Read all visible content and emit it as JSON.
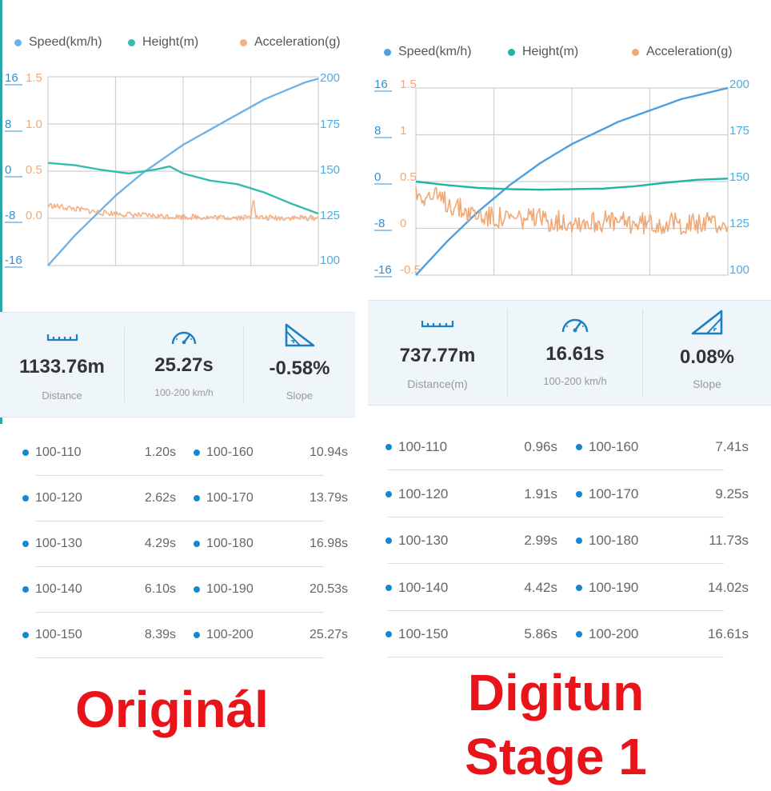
{
  "colors": {
    "speed": "#5aa7e0",
    "height": "#2bbcaa",
    "acceleration": "#f2ab7a",
    "caption": "#e8141a",
    "bullet": "#1787d4"
  },
  "panels": [
    {
      "legend": [
        {
          "label": "Speed(km/h)",
          "color": "#6fb2e8"
        },
        {
          "label": "Height(m)",
          "color": "#34bcae"
        },
        {
          "label": "Acceleration(g)",
          "color": "#f4b184"
        }
      ],
      "chart_data": {
        "type": "line",
        "title": "",
        "x_range": [
          0,
          1
        ],
        "axes": {
          "left_outer_ticks": [
            "16",
            "8",
            "0",
            "-8",
            "-16"
          ],
          "left_inner_ticks": [
            "1.5",
            "1.0",
            "0.5",
            "0.0"
          ],
          "right_ticks": [
            "200",
            "175",
            "150",
            "125",
            "100"
          ],
          "speed_range": [
            100,
            200
          ],
          "height_range": [
            -16,
            16
          ],
          "acceleration_range": [
            -0.5,
            1.5
          ]
        },
        "grid": true,
        "legend_position": "top",
        "series": [
          {
            "name": "Speed(km/h)",
            "axis": "right",
            "values": [
              [
                0,
                100
              ],
              [
                0.05,
                108
              ],
              [
                0.1,
                116
              ],
              [
                0.15,
                123
              ],
              [
                0.2,
                130
              ],
              [
                0.25,
                137
              ],
              [
                0.3,
                143
              ],
              [
                0.35,
                149
              ],
              [
                0.4,
                154
              ],
              [
                0.45,
                159
              ],
              [
                0.5,
                164
              ],
              [
                0.55,
                168
              ],
              [
                0.6,
                172
              ],
              [
                0.65,
                176
              ],
              [
                0.7,
                180
              ],
              [
                0.75,
                184
              ],
              [
                0.8,
                188
              ],
              [
                0.85,
                191
              ],
              [
                0.9,
                194
              ],
              [
                0.95,
                197
              ],
              [
                1,
                199
              ]
            ]
          },
          {
            "name": "Height(m)",
            "axis": "left_outer",
            "values": [
              [
                0,
                1.4
              ],
              [
                0.1,
                1.0
              ],
              [
                0.2,
                0.2
              ],
              [
                0.3,
                -0.4
              ],
              [
                0.4,
                0.3
              ],
              [
                0.45,
                0.8
              ],
              [
                0.5,
                -0.4
              ],
              [
                0.6,
                -1.6
              ],
              [
                0.7,
                -2.2
              ],
              [
                0.8,
                -3.6
              ],
              [
                0.9,
                -5.5
              ],
              [
                1,
                -7.2
              ]
            ]
          },
          {
            "name": "Acceleration(g)",
            "axis": "left_inner",
            "values": [
              [
                0,
                0.14
              ],
              [
                0.05,
                0.12
              ],
              [
                0.1,
                0.1
              ],
              [
                0.15,
                0.08
              ],
              [
                0.2,
                0.06
              ],
              [
                0.25,
                0.05
              ],
              [
                0.3,
                0.04
              ],
              [
                0.35,
                0.03
              ],
              [
                0.4,
                0.025
              ],
              [
                0.45,
                0.02
              ],
              [
                0.5,
                0.015
              ],
              [
                0.55,
                0.015
              ],
              [
                0.6,
                0.01
              ],
              [
                0.65,
                0.01
              ],
              [
                0.7,
                0.01
              ],
              [
                0.75,
                0.01
              ],
              [
                0.76,
                0.25
              ],
              [
                0.77,
                0.01
              ],
              [
                0.8,
                0.005
              ],
              [
                0.85,
                0.005
              ],
              [
                0.9,
                0.005
              ],
              [
                1,
                0.005
              ]
            ],
            "noise": 0.03
          }
        ]
      },
      "stats": [
        {
          "icon": "ruler-icon",
          "value": "1133.76m",
          "label": "Distance"
        },
        {
          "icon": "speedometer-icon",
          "value": "25.27s",
          "label": "100-200 km/h"
        },
        {
          "icon": "slope-icon",
          "value": "-0.58%",
          "label": "Slope"
        }
      ],
      "splits": [
        {
          "range": "100-110",
          "time": "1.20s",
          "range2": "100-160",
          "time2": "10.94s"
        },
        {
          "range": "100-120",
          "time": "2.62s",
          "range2": "100-170",
          "time2": "13.79s"
        },
        {
          "range": "100-130",
          "time": "4.29s",
          "range2": "100-180",
          "time2": "16.98s"
        },
        {
          "range": "100-140",
          "time": "6.10s",
          "range2": "100-190",
          "time2": "20.53s"
        },
        {
          "range": "100-150",
          "time": "8.39s",
          "range2": "100-200",
          "time2": "25.27s"
        }
      ],
      "caption": [
        "Originál"
      ]
    },
    {
      "legend": [
        {
          "label": "Speed(km/h)",
          "color": "#4c9fe0"
        },
        {
          "label": "Height(m)",
          "color": "#1fb5a5"
        },
        {
          "label": "Acceleration(g)",
          "color": "#f0a877"
        }
      ],
      "chart_data": {
        "type": "line",
        "title": "",
        "x_range": [
          0,
          1
        ],
        "axes": {
          "left_outer_ticks": [
            "16",
            "8",
            "0",
            "-8",
            "-16"
          ],
          "left_inner_ticks": [
            "1.5",
            "1",
            "0.5",
            "0",
            "-0.5"
          ],
          "right_ticks": [
            "200",
            "175",
            "150",
            "125",
            "100"
          ],
          "speed_range": [
            100,
            200
          ],
          "height_range": [
            -16,
            16
          ],
          "acceleration_range": [
            -0.5,
            1.5
          ]
        },
        "grid": true,
        "legend_position": "top",
        "series": [
          {
            "name": "Speed(km/h)",
            "axis": "right",
            "values": [
              [
                0,
                100
              ],
              [
                0.05,
                109
              ],
              [
                0.1,
                118
              ],
              [
                0.15,
                126
              ],
              [
                0.2,
                134
              ],
              [
                0.25,
                141
              ],
              [
                0.3,
                148
              ],
              [
                0.35,
                154
              ],
              [
                0.4,
                160
              ],
              [
                0.45,
                165
              ],
              [
                0.5,
                170
              ],
              [
                0.55,
                174
              ],
              [
                0.6,
                178
              ],
              [
                0.65,
                182
              ],
              [
                0.7,
                185
              ],
              [
                0.75,
                188
              ],
              [
                0.8,
                191
              ],
              [
                0.85,
                194
              ],
              [
                0.9,
                196
              ],
              [
                0.95,
                198
              ],
              [
                1,
                200
              ]
            ]
          },
          {
            "name": "Height(m)",
            "axis": "left_outer",
            "values": [
              [
                0,
                0
              ],
              [
                0.1,
                -0.6
              ],
              [
                0.2,
                -1.1
              ],
              [
                0.3,
                -1.3
              ],
              [
                0.4,
                -1.4
              ],
              [
                0.5,
                -1.3
              ],
              [
                0.6,
                -1.2
              ],
              [
                0.7,
                -0.8
              ],
              [
                0.8,
                -0.2
              ],
              [
                0.9,
                0.3
              ],
              [
                1,
                0.5
              ]
            ]
          },
          {
            "name": "Acceleration(g)",
            "axis": "left_inner",
            "values": [
              [
                0,
                0.38
              ],
              [
                0.05,
                0.34
              ],
              [
                0.1,
                0.28
              ],
              [
                0.15,
                0.2
              ],
              [
                0.2,
                0.14
              ],
              [
                0.25,
                0.12
              ],
              [
                0.3,
                0.1
              ],
              [
                0.35,
                0.1
              ],
              [
                0.4,
                0.09
              ],
              [
                0.5,
                0.08
              ],
              [
                0.6,
                0.07
              ],
              [
                0.7,
                0.06
              ],
              [
                0.8,
                0.06
              ],
              [
                0.9,
                0.05
              ],
              [
                1,
                0.05
              ]
            ],
            "noise": 0.12
          }
        ]
      },
      "stats": [
        {
          "icon": "ruler-icon",
          "value": "737.77m",
          "label": "Distance(m)"
        },
        {
          "icon": "speedometer-icon",
          "value": "16.61s",
          "label": "100-200 km/h"
        },
        {
          "icon": "slope-icon",
          "value": "0.08%",
          "label": "Slope"
        }
      ],
      "splits": [
        {
          "range": "100-110",
          "time": "0.96s",
          "range2": "100-160",
          "time2": "7.41s"
        },
        {
          "range": "100-120",
          "time": "1.91s",
          "range2": "100-170",
          "time2": "9.25s"
        },
        {
          "range": "100-130",
          "time": "2.99s",
          "range2": "100-180",
          "time2": "11.73s"
        },
        {
          "range": "100-140",
          "time": "4.42s",
          "range2": "100-190",
          "time2": "14.02s"
        },
        {
          "range": "100-150",
          "time": "5.86s",
          "range2": "100-200",
          "time2": "16.61s"
        }
      ],
      "caption": [
        "Digitun",
        "Stage 1"
      ]
    }
  ]
}
